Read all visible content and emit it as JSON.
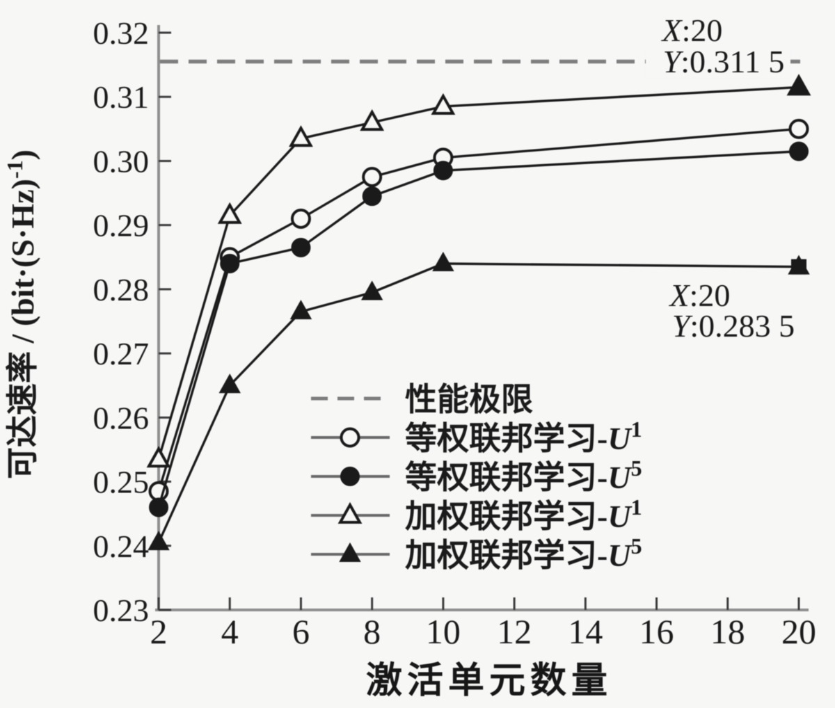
{
  "figure": {
    "background": "#f7f7f6",
    "ink_color": "#1a1a1a",
    "axis_color": "#8f8f8f",
    "tick_color": "#3c3c3c",
    "dash_color": "#7d7d7d",
    "legend_line_color": "#6a6a6a"
  },
  "chart_data": {
    "type": "line",
    "title": "",
    "xlabel": "激活单元数量",
    "ylabel": "可达速率 / (bit·(S·Hz)⁻¹)",
    "ylabel_parts": {
      "prefix": "可达速率 / (bit·(S·Hz)",
      "sup": "-1",
      "suffix": ")"
    },
    "xlim": [
      2,
      20
    ],
    "ylim": [
      0.23,
      0.32
    ],
    "grid": false,
    "x_ticks": [
      "2",
      "4",
      "6",
      "8",
      "10",
      "12",
      "14",
      "16",
      "18",
      "20"
    ],
    "y_ticks": [
      "0.23",
      "0.24",
      "0.25",
      "0.26",
      "0.27",
      "0.28",
      "0.29",
      "0.30",
      "0.31",
      "0.32"
    ],
    "x": [
      2,
      4,
      6,
      8,
      10,
      20
    ],
    "limit_line": {
      "label": "性能极限",
      "value": 0.3155,
      "style": "dashed"
    },
    "series": [
      {
        "id": "equal-weight-u1",
        "name": "等权联邦学习-U1",
        "marker": "circle-open",
        "values": [
          0.2485,
          0.285,
          0.291,
          0.2975,
          0.3005,
          0.305
        ]
      },
      {
        "id": "equal-weight-u5",
        "name": "等权联邦学习-U5",
        "marker": "circle-filled",
        "values": [
          0.246,
          0.284,
          0.2865,
          0.2945,
          0.2985,
          0.3015
        ]
      },
      {
        "id": "weighted-u1",
        "name": "加权联邦学习-U1",
        "marker": "triangle-open",
        "values": [
          0.2535,
          0.2915,
          0.3035,
          0.306,
          0.3085,
          0.3115
        ]
      },
      {
        "id": "weighted-u5",
        "name": "加权联邦学习-U5",
        "marker": "triangle-filled",
        "values": [
          0.2405,
          0.265,
          0.2765,
          0.2795,
          0.284,
          0.2835
        ]
      }
    ],
    "cursor_markers": [
      {
        "x": 20,
        "y": 0.3115,
        "shape": "triangle-filled"
      },
      {
        "x": 20,
        "y": 0.2835,
        "shape": "square-filled"
      }
    ],
    "annotations": [
      {
        "lines": [
          {
            "italic": "X",
            "text": ":20"
          },
          {
            "italic": "Y",
            "text": ":0.311 5"
          }
        ]
      },
      {
        "lines": [
          {
            "italic": "X",
            "text": ":20"
          },
          {
            "italic": "Y",
            "text": ":0.283 5"
          }
        ]
      }
    ],
    "legend": {
      "position": "inside-bottom-center",
      "border": false,
      "entries": [
        {
          "text": "性能极限",
          "var": "",
          "sup": "",
          "sample": "dashed"
        },
        {
          "text": "等权联邦学习-",
          "var": "U",
          "sup": "1",
          "sample": "circle-open"
        },
        {
          "text": "等权联邦学习-",
          "var": "U",
          "sup": "5",
          "sample": "circle-filled"
        },
        {
          "text": "加权联邦学习-",
          "var": "U",
          "sup": "1",
          "sample": "triangle-open"
        },
        {
          "text": "加权联邦学习-",
          "var": "U",
          "sup": "5",
          "sample": "triangle-filled"
        }
      ]
    }
  }
}
